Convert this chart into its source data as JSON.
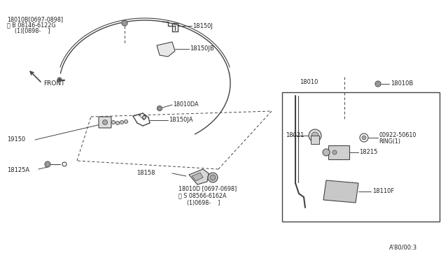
{
  "bg_color": "#ffffff",
  "line_color": "#444444",
  "text_color": "#222222",
  "fig_width": 6.4,
  "fig_height": 3.72,
  "dpi": 100,
  "labels": {
    "18010B_label": "18010B",
    "18010_label": "18010",
    "18021_label": "18021",
    "00922_label": "00922-50610",
    "ring_label": "RING(1)",
    "18215_label": "18215",
    "18110F_label": "18110F",
    "18150J_label": "18150J",
    "18150JB_label": "18150JB",
    "18010DA_label": "18010DA",
    "18150JA_label": "18150JA",
    "19150_label": "19150",
    "18125A_label": "18125A",
    "18158_label": "18158",
    "18010D_label": "18010D [0697-0698]",
    "18010B_top_line1": "18010B[0697-0898]",
    "18010B_top_line2": "B 08146-6122G",
    "18010B_top_line3": "  (1)[0898-    ]",
    "front_label": "FRONT",
    "watermark": "A'80/00:3",
    "sub08566_1": "S 08566-6162A",
    "sub08566_2": "  (1)0698-    ]"
  }
}
